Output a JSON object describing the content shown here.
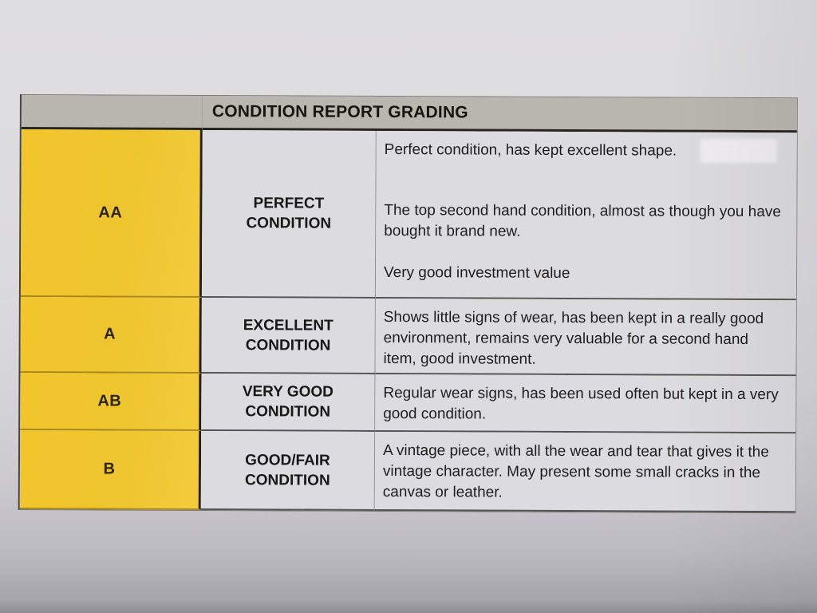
{
  "document": {
    "header": "CONDITION REPORT GRADING",
    "rows": [
      {
        "grade": "AA",
        "condition": "PERFECT CONDITION",
        "description": [
          "Perfect condition, has kept excellent shape.",
          "The top second hand condition, almost as though you have bought it brand new.",
          "Very good investment value"
        ]
      },
      {
        "grade": "A",
        "condition": "EXCELLENT CONDITION",
        "description": [
          "Shows little signs of wear, has been kept in a really good environment, remains very valuable for a second hand item, good investment."
        ]
      },
      {
        "grade": "AB",
        "condition": "VERY GOOD CONDITION",
        "description": [
          "Regular wear signs, has been used often but kept in a very good condition."
        ]
      },
      {
        "grade": "B",
        "condition": "GOOD/FAIR CONDITION",
        "description": [
          "A vintage piece, with all the wear and tear that gives it the vintage character. May present some small cracks in the canvas or leather."
        ]
      }
    ],
    "colors": {
      "grade_column_yellow": "#EEC52F",
      "header_band_gray": "#B9B6B0",
      "cell_background": "#DCDBE0",
      "paper_background": "#D8D7DC",
      "text": "#1C1B1A"
    }
  }
}
